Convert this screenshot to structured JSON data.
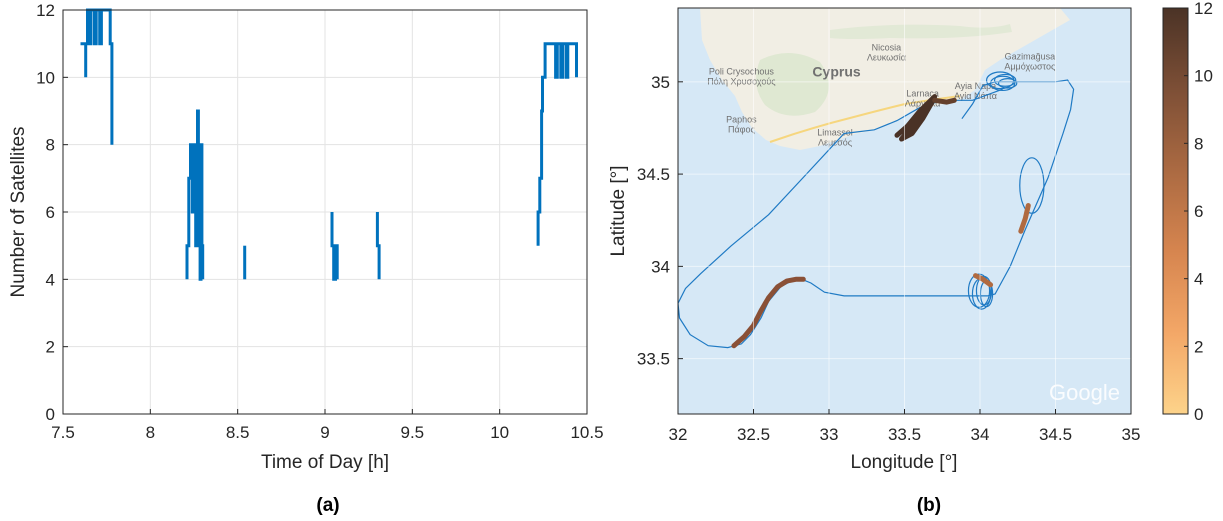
{
  "chart_data": [
    {
      "type": "line",
      "panel_label": "(a)",
      "xlabel": "Time of Day [h]",
      "ylabel": "Number of Satellites",
      "xlim": [
        7.5,
        10.5
      ],
      "ylim": [
        0,
        12
      ],
      "xticks": [
        "7.5",
        "8",
        "8.5",
        "9",
        "9.5",
        "10",
        "10.5"
      ],
      "yticks": [
        "0",
        "2",
        "4",
        "6",
        "8",
        "10",
        "12"
      ],
      "grid": true,
      "color": "#0072bd",
      "segments": [
        [
          [
            7.6,
            11
          ],
          [
            7.63,
            11
          ],
          [
            7.63,
            10
          ],
          [
            7.63,
            11
          ],
          [
            7.64,
            11
          ],
          [
            7.64,
            12
          ],
          [
            7.65,
            12
          ],
          [
            7.65,
            11
          ],
          [
            7.66,
            11
          ],
          [
            7.66,
            12
          ],
          [
            7.68,
            12
          ],
          [
            7.68,
            11
          ],
          [
            7.69,
            11
          ],
          [
            7.69,
            12
          ],
          [
            7.71,
            12
          ],
          [
            7.71,
            11
          ],
          [
            7.72,
            11
          ],
          [
            7.72,
            12
          ],
          [
            7.77,
            12
          ],
          [
            7.77,
            11
          ],
          [
            7.78,
            11
          ],
          [
            7.78,
            8
          ]
        ],
        [
          [
            8.21,
            4
          ],
          [
            8.21,
            5
          ],
          [
            8.22,
            5
          ],
          [
            8.22,
            7
          ],
          [
            8.23,
            7
          ],
          [
            8.23,
            8
          ],
          [
            8.24,
            8
          ],
          [
            8.24,
            6
          ],
          [
            8.25,
            6
          ],
          [
            8.25,
            8
          ],
          [
            8.26,
            8
          ],
          [
            8.26,
            5
          ],
          [
            8.27,
            5
          ],
          [
            8.27,
            9
          ],
          [
            8.275,
            9
          ],
          [
            8.275,
            5
          ],
          [
            8.28,
            5
          ],
          [
            8.28,
            7
          ],
          [
            8.285,
            7
          ],
          [
            8.285,
            4
          ],
          [
            8.29,
            4
          ],
          [
            8.29,
            8
          ],
          [
            8.295,
            8
          ],
          [
            8.295,
            5
          ],
          [
            8.3,
            5
          ],
          [
            8.3,
            4
          ]
        ],
        [
          [
            8.54,
            5
          ],
          [
            8.54,
            4
          ]
        ],
        [
          [
            9.04,
            6
          ],
          [
            9.04,
            5
          ],
          [
            9.05,
            5
          ],
          [
            9.05,
            4
          ],
          [
            9.06,
            4
          ],
          [
            9.06,
            5
          ],
          [
            9.07,
            5
          ],
          [
            9.07,
            4
          ]
        ],
        [
          [
            9.3,
            6
          ],
          [
            9.3,
            5
          ],
          [
            9.31,
            5
          ],
          [
            9.31,
            4
          ]
        ],
        [
          [
            10.22,
            5
          ],
          [
            10.22,
            6
          ],
          [
            10.23,
            6
          ],
          [
            10.23,
            7
          ],
          [
            10.24,
            7
          ],
          [
            10.24,
            9
          ],
          [
            10.245,
            9
          ],
          [
            10.245,
            10
          ],
          [
            10.26,
            10
          ],
          [
            10.26,
            11
          ],
          [
            10.32,
            11
          ],
          [
            10.32,
            10
          ],
          [
            10.33,
            10
          ],
          [
            10.33,
            11
          ],
          [
            10.35,
            11
          ],
          [
            10.35,
            10
          ],
          [
            10.36,
            10
          ],
          [
            10.36,
            11
          ],
          [
            10.38,
            11
          ],
          [
            10.38,
            10
          ],
          [
            10.39,
            10
          ],
          [
            10.39,
            11
          ],
          [
            10.44,
            11
          ],
          [
            10.44,
            10
          ]
        ]
      ]
    },
    {
      "type": "scatter",
      "subtype": "trajectory-map",
      "panel_label": "(b)",
      "xlabel": "Longitude [°]",
      "ylabel": "Latitude [°]",
      "xlim": [
        32,
        35
      ],
      "ylim": [
        33.2,
        35.4
      ],
      "xticks": [
        "32",
        "32.5",
        "33",
        "33.5",
        "34",
        "34.5",
        "35"
      ],
      "yticks": [
        "33.5",
        "34",
        "34.5",
        "35"
      ],
      "grid": true,
      "colorbar": {
        "min": 0,
        "max": 12,
        "ticks": [
          "0",
          "2",
          "4",
          "6",
          "8",
          "10",
          "12"
        ],
        "colors": [
          "#fdd38a",
          "#f7a463",
          "#d98450",
          "#b06a40",
          "#8a5036",
          "#64402c",
          "#4a3226"
        ]
      },
      "track_color": "#1f7ac4",
      "track": [
        [
          33.88,
          34.8
        ],
        [
          33.95,
          34.88
        ],
        [
          34.02,
          34.98
        ],
        [
          34.1,
          35.0
        ],
        [
          34.2,
          35.0
        ],
        [
          34.35,
          35.0
        ],
        [
          34.5,
          35.0
        ],
        [
          34.58,
          35.01
        ],
        [
          34.62,
          34.96
        ],
        [
          34.6,
          34.85
        ],
        [
          34.55,
          34.72
        ],
        [
          34.45,
          34.48
        ],
        [
          34.3,
          34.2
        ],
        [
          34.2,
          34.0
        ],
        [
          34.1,
          33.85
        ],
        [
          34.05,
          33.84
        ],
        [
          33.9,
          33.84
        ],
        [
          33.7,
          33.84
        ],
        [
          33.4,
          33.84
        ],
        [
          33.1,
          33.84
        ],
        [
          32.97,
          33.86
        ],
        [
          32.88,
          33.91
        ],
        [
          32.82,
          33.93
        ],
        [
          32.75,
          33.92
        ],
        [
          32.68,
          33.89
        ],
        [
          32.6,
          33.81
        ],
        [
          32.55,
          33.72
        ],
        [
          32.48,
          33.63
        ],
        [
          32.42,
          33.58
        ],
        [
          32.33,
          33.56
        ],
        [
          32.2,
          33.57
        ],
        [
          32.08,
          33.63
        ],
        [
          32.01,
          33.72
        ],
        [
          32.0,
          33.8
        ],
        [
          32.05,
          33.88
        ],
        [
          32.15,
          33.96
        ],
        [
          32.35,
          34.11
        ],
        [
          32.6,
          34.28
        ],
        [
          32.85,
          34.5
        ],
        [
          33.1,
          34.72
        ],
        [
          33.3,
          34.74
        ],
        [
          33.45,
          34.79
        ],
        [
          33.6,
          34.86
        ],
        [
          33.75,
          34.9
        ],
        [
          33.95,
          34.9
        ],
        [
          34.15,
          34.96
        ]
      ],
      "loops": [
        {
          "lon": 34.16,
          "lat": 35.0,
          "rlon": 0.09,
          "rlat": 0.045,
          "n": 4
        },
        {
          "lon": 34.02,
          "lat": 33.86,
          "rlon": 0.07,
          "rlat": 0.09,
          "n": 4
        },
        {
          "lon": 34.35,
          "lat": 34.43,
          "rlon": 0.08,
          "rlat": 0.15,
          "n": 1
        }
      ],
      "colored_segments": [
        {
          "value": 12,
          "points": [
            [
              33.45,
              34.71
            ],
            [
              33.52,
              34.76
            ],
            [
              33.6,
              34.84
            ],
            [
              33.7,
              34.92
            ],
            [
              33.65,
              34.85
            ],
            [
              33.55,
              34.76
            ],
            [
              33.48,
              34.69
            ],
            [
              33.55,
              34.72
            ],
            [
              33.62,
              34.8
            ],
            [
              33.69,
              34.9
            ]
          ]
        },
        {
          "value": 9,
          "points": [
            [
              33.7,
              34.9
            ],
            [
              33.78,
              34.89
            ],
            [
              33.83,
              34.9
            ]
          ]
        },
        {
          "value": 7,
          "points": [
            [
              32.37,
              33.57
            ],
            [
              32.44,
              33.62
            ],
            [
              32.5,
              33.68
            ],
            [
              32.55,
              33.76
            ],
            [
              32.6,
              33.83
            ],
            [
              32.66,
              33.89
            ],
            [
              32.72,
              33.92
            ],
            [
              32.78,
              33.93
            ],
            [
              32.83,
              33.93
            ]
          ]
        },
        {
          "value": 5,
          "points": [
            [
              34.27,
              34.19
            ],
            [
              34.3,
              34.26
            ],
            [
              34.32,
              34.33
            ]
          ]
        },
        {
          "value": 6,
          "points": [
            [
              33.97,
              33.95
            ],
            [
              34.02,
              33.93
            ],
            [
              34.07,
              33.9
            ]
          ]
        }
      ],
      "map_labels": [
        {
          "name": "Nicosia",
          "alt": "Λευκωσία",
          "lon": 33.38,
          "lat": 35.17
        },
        {
          "name": "Cyprus",
          "alt": "",
          "lon": 33.05,
          "lat": 35.03
        },
        {
          "name": "Larnaca",
          "alt": "Λάρνακα",
          "lon": 33.62,
          "lat": 34.92
        },
        {
          "name": "Limassol",
          "alt": "Λεμεσός",
          "lon": 33.04,
          "lat": 34.71
        },
        {
          "name": "Paphos",
          "alt": "Πάφος",
          "lon": 32.42,
          "lat": 34.78
        },
        {
          "name": "Poli Crysochous",
          "alt": "Πόλη Χρυσοχούς",
          "lon": 32.42,
          "lat": 35.04
        },
        {
          "name": "Gazimağusa",
          "alt": "Αμμόχωστος",
          "lon": 34.33,
          "lat": 35.12
        },
        {
          "name": "Ayia Napa",
          "alt": "Αγία Νάπα",
          "lon": 33.97,
          "lat": 34.96
        }
      ],
      "watermark": "Google"
    }
  ]
}
